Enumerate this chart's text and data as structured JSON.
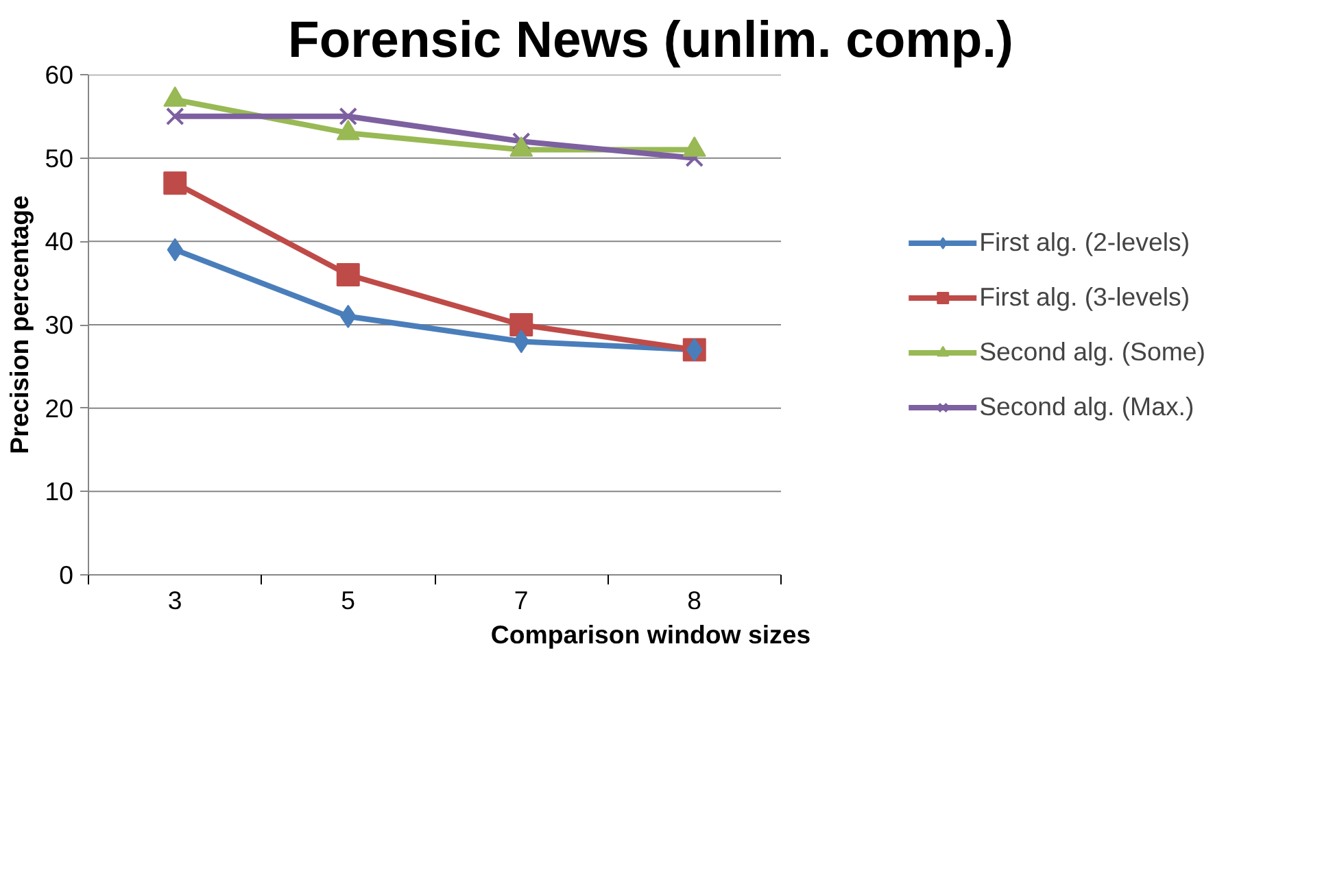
{
  "chart_data": {
    "type": "line",
    "title": "Forensic News (unlim. comp.)",
    "xlabel": "Comparison window sizes",
    "ylabel": "Precision percentage",
    "categories": [
      "3",
      "5",
      "7",
      "8"
    ],
    "ylim": [
      0,
      60
    ],
    "yticks": [
      0,
      10,
      20,
      30,
      40,
      50,
      60
    ],
    "grid": "y",
    "legend": "right",
    "line_style": "solid",
    "series": [
      {
        "name": "First alg. (2-levels)",
        "color": "#4a7ebb",
        "marker": "diamond",
        "values": [
          39,
          31,
          28,
          27
        ]
      },
      {
        "name": "First alg. (3-levels)",
        "color": "#be4b48",
        "marker": "square",
        "values": [
          47,
          36,
          30,
          27
        ]
      },
      {
        "name": "Second alg. (Some)",
        "color": "#98b954",
        "marker": "triangle",
        "values": [
          57,
          53,
          51,
          51
        ]
      },
      {
        "name": "Second alg. (Max.)",
        "color": "#7d60a0",
        "marker": "x",
        "values": [
          55,
          55,
          52,
          50
        ]
      }
    ]
  }
}
